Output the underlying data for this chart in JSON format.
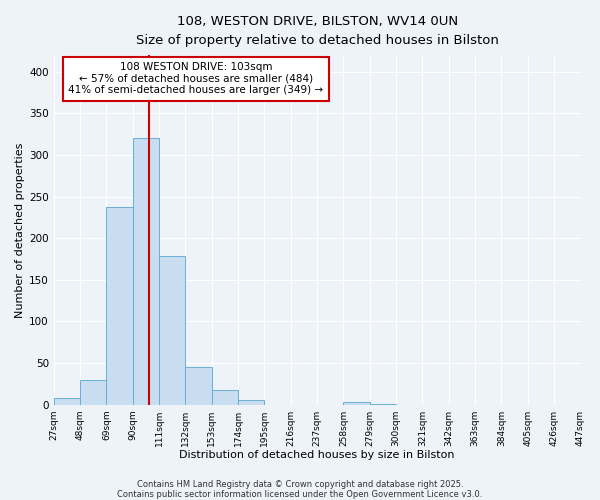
{
  "title": "108, WESTON DRIVE, BILSTON, WV14 0UN",
  "subtitle": "Size of property relative to detached houses in Bilston",
  "xlabel": "Distribution of detached houses by size in Bilston",
  "ylabel": "Number of detached properties",
  "bar_color": "#c8ddf0",
  "bar_edge_color": "#6aaed6",
  "background_color": "#eef2f9",
  "plot_bg_color": "#eef2f9",
  "grid_color": "#ffffff",
  "bins": [
    27,
    48,
    69,
    90,
    111,
    132,
    153,
    174,
    195,
    216,
    237,
    258,
    279,
    300,
    321,
    342,
    363,
    384,
    405,
    426,
    447
  ],
  "counts": [
    8,
    30,
    238,
    320,
    178,
    45,
    17,
    5,
    0,
    0,
    0,
    3,
    1,
    0,
    0,
    0,
    0,
    0,
    0,
    0
  ],
  "vline_x": 103,
  "vline_color": "#cc0000",
  "ylim": [
    0,
    420
  ],
  "yticks": [
    0,
    50,
    100,
    150,
    200,
    250,
    300,
    350,
    400
  ],
  "annotation_title": "108 WESTON DRIVE: 103sqm",
  "annotation_line1": "← 57% of detached houses are smaller (484)",
  "annotation_line2": "41% of semi-detached houses are larger (349) →",
  "annotation_box_color": "#ffffff",
  "annotation_box_edge_color": "#cc0000",
  "footnote1": "Contains HM Land Registry data © Crown copyright and database right 2025.",
  "footnote2": "Contains public sector information licensed under the Open Government Licence v3.0."
}
